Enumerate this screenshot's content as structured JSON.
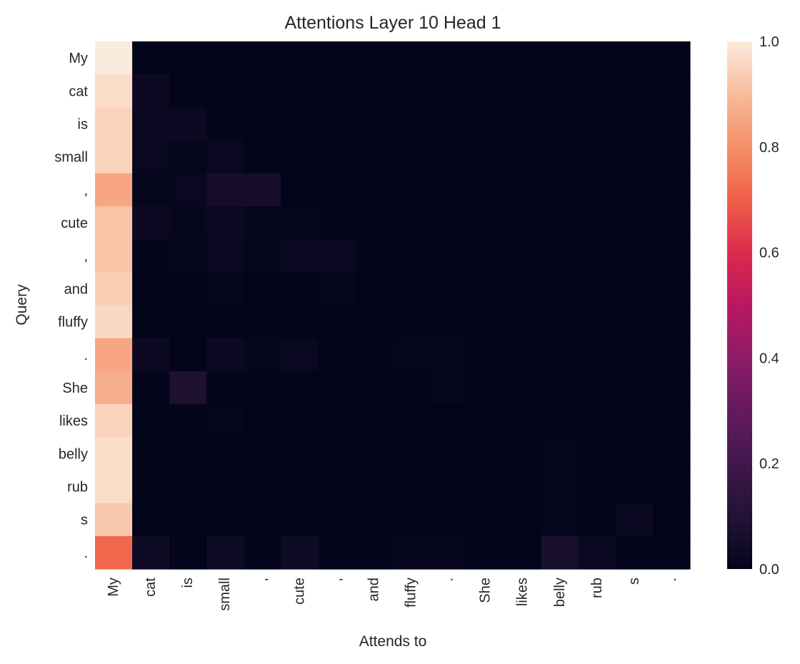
{
  "chart_data": {
    "type": "heatmap",
    "title": "Attentions Layer 10 Head 1",
    "xlabel": "Attends to",
    "ylabel": "Query",
    "x_labels": [
      "My",
      "cat",
      "is",
      "small",
      ",",
      "cute",
      ",",
      "and",
      "fluffy",
      ".",
      "She",
      "likes",
      "belly",
      "rub",
      "s",
      "."
    ],
    "y_labels": [
      "My",
      "cat",
      "is",
      "small",
      ",",
      "cute",
      ",",
      "and",
      "fluffy",
      ".",
      "She",
      "likes",
      "belly",
      "rub",
      "s",
      "."
    ],
    "values": [
      [
        1.0,
        0.0,
        0.0,
        0.0,
        0.0,
        0.0,
        0.0,
        0.0,
        0.0,
        0.0,
        0.0,
        0.0,
        0.0,
        0.0,
        0.0,
        0.0
      ],
      [
        0.97,
        0.03,
        0.0,
        0.0,
        0.0,
        0.0,
        0.0,
        0.0,
        0.0,
        0.0,
        0.0,
        0.0,
        0.0,
        0.0,
        0.0,
        0.0
      ],
      [
        0.95,
        0.02,
        0.03,
        0.0,
        0.0,
        0.0,
        0.0,
        0.0,
        0.0,
        0.0,
        0.0,
        0.0,
        0.0,
        0.0,
        0.0,
        0.0
      ],
      [
        0.95,
        0.02,
        0.01,
        0.02,
        0.0,
        0.0,
        0.0,
        0.0,
        0.0,
        0.0,
        0.0,
        0.0,
        0.0,
        0.0,
        0.0,
        0.0
      ],
      [
        0.85,
        0.01,
        0.02,
        0.06,
        0.06,
        0.0,
        0.0,
        0.0,
        0.0,
        0.0,
        0.0,
        0.0,
        0.0,
        0.0,
        0.0,
        0.0
      ],
      [
        0.92,
        0.03,
        0.01,
        0.03,
        0.01,
        0.01,
        0.0,
        0.0,
        0.0,
        0.0,
        0.0,
        0.0,
        0.0,
        0.0,
        0.0,
        0.0
      ],
      [
        0.92,
        0.0,
        0.01,
        0.02,
        0.01,
        0.02,
        0.02,
        0.0,
        0.0,
        0.0,
        0.0,
        0.0,
        0.0,
        0.0,
        0.0,
        0.0
      ],
      [
        0.94,
        0.0,
        0.0,
        0.01,
        0.0,
        0.0,
        0.01,
        0.0,
        0.0,
        0.0,
        0.0,
        0.0,
        0.0,
        0.0,
        0.0,
        0.0
      ],
      [
        0.96,
        0.0,
        0.0,
        0.0,
        0.0,
        0.0,
        0.0,
        0.0,
        0.0,
        0.0,
        0.0,
        0.0,
        0.0,
        0.0,
        0.0,
        0.0
      ],
      [
        0.85,
        0.03,
        0.0,
        0.03,
        0.01,
        0.02,
        0.0,
        0.0,
        0.01,
        0.01,
        0.0,
        0.0,
        0.0,
        0.0,
        0.0,
        0.0
      ],
      [
        0.87,
        0.0,
        0.08,
        0.0,
        0.0,
        0.0,
        0.0,
        0.0,
        0.0,
        0.01,
        0.0,
        0.0,
        0.0,
        0.0,
        0.0,
        0.0
      ],
      [
        0.95,
        0.0,
        0.0,
        0.01,
        0.0,
        0.0,
        0.0,
        0.0,
        0.0,
        0.0,
        0.0,
        0.0,
        0.0,
        0.0,
        0.0,
        0.0
      ],
      [
        0.97,
        0.0,
        0.0,
        0.0,
        0.0,
        0.0,
        0.0,
        0.0,
        0.0,
        0.0,
        0.0,
        0.0,
        0.01,
        0.0,
        0.0,
        0.0
      ],
      [
        0.97,
        0.0,
        0.0,
        0.0,
        0.0,
        0.0,
        0.0,
        0.0,
        0.0,
        0.0,
        0.0,
        0.0,
        0.01,
        0.0,
        0.0,
        0.0
      ],
      [
        0.93,
        0.0,
        0.0,
        0.0,
        0.0,
        0.0,
        0.0,
        0.0,
        0.0,
        0.0,
        0.0,
        0.0,
        0.01,
        0.0,
        0.03,
        0.0
      ],
      [
        0.72,
        0.04,
        0.0,
        0.04,
        0.0,
        0.04,
        0.0,
        0.0,
        0.01,
        0.01,
        0.0,
        0.0,
        0.07,
        0.02,
        0.0,
        0.0
      ]
    ],
    "vmin": 0.0,
    "vmax": 1.0,
    "colorbar_ticks": [
      "0.0",
      "0.2",
      "0.4",
      "0.6",
      "0.8",
      "1.0"
    ],
    "colormap": "rocket",
    "grid": false,
    "colorbar": "right"
  }
}
